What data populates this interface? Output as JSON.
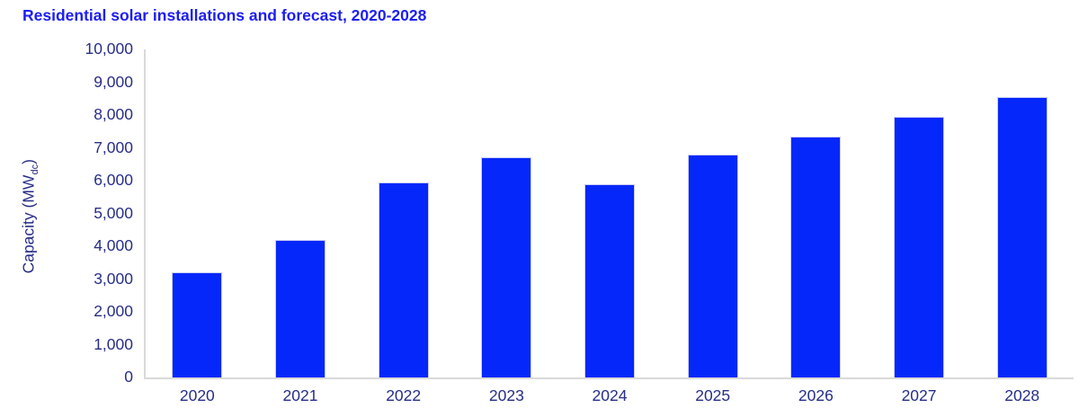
{
  "chart_data": {
    "type": "bar",
    "title": "Residential solar installations and forecast, 2020-2028",
    "categories": [
      "2020",
      "2021",
      "2022",
      "2023",
      "2024",
      "2025",
      "2026",
      "2027",
      "2028"
    ],
    "values": [
      3200,
      4200,
      5950,
      6700,
      5900,
      6800,
      7350,
      7950,
      8550
    ],
    "xlabel": "",
    "ylabel": "Capacity (MWdc)",
    "ylabel_prefix": "Capacity (MW",
    "ylabel_sub": "dc",
    "ylabel_suffix": ")",
    "ylim": [
      0,
      10000
    ],
    "ytick_step": 1000,
    "ytick_labels": [
      "10,000",
      "9,000",
      "8,000",
      "7,000",
      "6,000",
      "5,000",
      "4,000",
      "3,000",
      "2,000",
      "1,000",
      "0"
    ],
    "grid": false,
    "legend_position": "none",
    "colors": {
      "bar_fill": "#0527fa",
      "bar_edge": "#c9cdf4",
      "title_text": "#1c1ef2",
      "axis_text": "#262d87",
      "axis_line": "#d9d9d9",
      "background": "#ffffff"
    }
  }
}
